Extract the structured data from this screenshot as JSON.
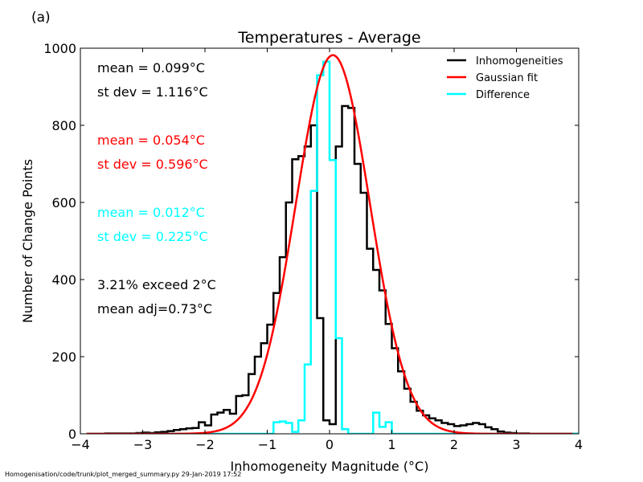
{
  "panel_label": "(a)",
  "footer": "Homogenisation/code/trunk/plot_merged_summary.py   29-Jan-2019 17:52",
  "colors": {
    "inhomogeneities": "#000000",
    "gaussian_fit": "#ff0000",
    "difference": "#00ffff"
  },
  "annotations": [
    {
      "text": "mean =  0.099°C",
      "color": "#000000"
    },
    {
      "text": "st dev =  1.116°C",
      "color": "#000000"
    },
    {
      "text": "mean =  0.054°C",
      "color": "#ff0000"
    },
    {
      "text": "st dev =  0.596°C",
      "color": "#ff0000"
    },
    {
      "text": "mean =  0.012°C",
      "color": "#00ffff"
    },
    {
      "text": "st dev =  0.225°C",
      "color": "#00ffff"
    },
    {
      "text": "3.21% exceed 2°C",
      "color": "#000000"
    },
    {
      "text": "mean adj=0.73°C",
      "color": "#000000"
    }
  ],
  "chart_data": {
    "type": "line",
    "title": "Temperatures - Average",
    "xlabel": "Inhomogeneity Magnitude (°C)",
    "ylabel": "Number of Change Points",
    "xlim": [
      -4,
      4
    ],
    "ylim": [
      0,
      1000
    ],
    "xticks": [
      -4,
      -3,
      -2,
      -1,
      0,
      1,
      2,
      3,
      4
    ],
    "yticks": [
      0,
      200,
      400,
      600,
      800,
      1000
    ],
    "xtick_labels": [
      "−4",
      "−3",
      "−2",
      "−1",
      "0",
      "1",
      "2",
      "3",
      "4"
    ],
    "ytick_labels": [
      "0",
      "200",
      "400",
      "600",
      "800",
      "1000"
    ],
    "legend_position": "top-right",
    "bin_width": 0.1,
    "series": [
      {
        "name": "Inhomogeneities",
        "style": "step",
        "bin_starts": [
          -3.9,
          -3.8,
          -3.7,
          -3.6,
          -3.5,
          -3.4,
          -3.3,
          -3.2,
          -3.1,
          -3.0,
          -2.9,
          -2.8,
          -2.7,
          -2.6,
          -2.5,
          -2.4,
          -2.3,
          -2.2,
          -2.1,
          -2.0,
          -1.9,
          -1.8,
          -1.7,
          -1.6,
          -1.5,
          -1.4,
          -1.3,
          -1.2,
          -1.1,
          -1.0,
          -0.9,
          -0.8,
          -0.7,
          -0.6,
          -0.5,
          -0.4,
          -0.3,
          -0.2,
          -0.1,
          0.0,
          0.1,
          0.2,
          0.3,
          0.4,
          0.5,
          0.6,
          0.7,
          0.8,
          0.9,
          1.0,
          1.1,
          1.2,
          1.3,
          1.4,
          1.5,
          1.6,
          1.7,
          1.8,
          1.9,
          2.0,
          2.1,
          2.2,
          2.3,
          2.4,
          2.5,
          2.6,
          2.7,
          2.8,
          2.9,
          3.0,
          3.1,
          3.2,
          3.3,
          3.4,
          3.5,
          3.6,
          3.7,
          3.8,
          3.9
        ],
        "values": [
          0,
          0,
          0,
          1,
          1,
          1,
          1,
          1,
          2,
          3,
          2,
          4,
          5,
          7,
          10,
          12,
          14,
          15,
          30,
          22,
          50,
          55,
          62,
          52,
          98,
          100,
          155,
          200,
          235,
          283,
          365,
          458,
          600,
          712,
          720,
          745,
          800,
          300,
          35,
          25,
          745,
          850,
          845,
          700,
          625,
          480,
          425,
          372,
          285,
          222,
          162,
          117,
          83,
          60,
          48,
          40,
          35,
          28,
          25,
          20,
          22,
          25,
          28,
          25,
          17,
          12,
          6,
          3,
          2,
          1,
          1,
          0,
          0,
          0,
          0,
          0,
          0,
          0,
          0
        ]
      },
      {
        "name": "Gaussian fit",
        "style": "curve",
        "mean": 0.054,
        "sd": 0.596,
        "peak": 982,
        "x_range": [
          -3.9,
          3.9
        ]
      },
      {
        "name": "Difference",
        "style": "step",
        "bin_starts": [
          -3.9,
          -3.8,
          -3.7,
          -3.6,
          -3.5,
          -3.4,
          -3.3,
          -3.2,
          -3.1,
          -3.0,
          -2.9,
          -2.8,
          -2.7,
          -2.6,
          -2.5,
          -2.4,
          -2.3,
          -2.2,
          -2.1,
          -2.0,
          -1.9,
          -1.8,
          -1.7,
          -1.6,
          -1.5,
          -1.4,
          -1.3,
          -1.2,
          -1.1,
          -1.0,
          -0.9,
          -0.8,
          -0.7,
          -0.6,
          -0.5,
          -0.4,
          -0.3,
          -0.2,
          -0.1,
          0.0,
          0.1,
          0.2,
          0.3,
          0.4,
          0.5,
          0.6,
          0.7,
          0.8,
          0.9,
          1.0,
          1.1,
          1.2,
          1.3,
          1.4,
          1.5,
          1.6,
          1.7,
          1.8,
          1.9,
          2.0,
          2.1,
          2.2,
          2.3,
          2.4,
          2.5,
          2.6,
          2.7,
          2.8,
          2.9,
          3.0,
          3.1,
          3.2,
          3.3,
          3.4,
          3.5,
          3.6,
          3.7,
          3.8,
          3.9
        ],
        "values": [
          0,
          0,
          0,
          0,
          0,
          0,
          0,
          0,
          0,
          0,
          0,
          0,
          0,
          0,
          0,
          0,
          0,
          0,
          0,
          0,
          0,
          0,
          0,
          0,
          0,
          0,
          0,
          0,
          0,
          0,
          30,
          32,
          28,
          5,
          35,
          180,
          630,
          930,
          965,
          710,
          248,
          12,
          0,
          0,
          0,
          0,
          55,
          18,
          30,
          0,
          0,
          0,
          0,
          0,
          0,
          0,
          0,
          0,
          0,
          0,
          0,
          0,
          0,
          0,
          0,
          0,
          0,
          0,
          0,
          0,
          0,
          0,
          0,
          0,
          0,
          0,
          0,
          0,
          0
        ]
      }
    ]
  }
}
